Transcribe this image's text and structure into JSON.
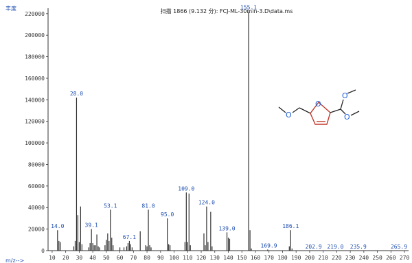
{
  "chart_data": {
    "type": "bar",
    "title": "扫描 1866 (9.132 分): FCJ-ML-30min-3.D\\data.ms",
    "ylabel": "丰度",
    "xlabel": "m/z-->",
    "xlim": [
      7,
      273
    ],
    "ylim": [
      0,
      225000
    ],
    "xticks": [
      10,
      20,
      30,
      40,
      50,
      60,
      70,
      80,
      90,
      100,
      110,
      120,
      130,
      140,
      150,
      160,
      170,
      180,
      190,
      200,
      210,
      220,
      230,
      240,
      250,
      260,
      270
    ],
    "yticks": [
      0,
      20000,
      40000,
      60000,
      80000,
      100000,
      120000,
      140000,
      160000,
      180000,
      200000,
      220000
    ],
    "peaks": [
      {
        "x": 14,
        "y": 19000
      },
      {
        "x": 15,
        "y": 9000
      },
      {
        "x": 16,
        "y": 8000
      },
      {
        "x": 26,
        "y": 4000
      },
      {
        "x": 27,
        "y": 9000
      },
      {
        "x": 28,
        "y": 142000
      },
      {
        "x": 29,
        "y": 33000
      },
      {
        "x": 30,
        "y": 8000
      },
      {
        "x": 31,
        "y": 41000
      },
      {
        "x": 32,
        "y": 6000
      },
      {
        "x": 37,
        "y": 3000
      },
      {
        "x": 38,
        "y": 7000
      },
      {
        "x": 39,
        "y": 20000
      },
      {
        "x": 40,
        "y": 7000
      },
      {
        "x": 41,
        "y": 5000
      },
      {
        "x": 42,
        "y": 5000
      },
      {
        "x": 43,
        "y": 15000
      },
      {
        "x": 44,
        "y": 4000
      },
      {
        "x": 45,
        "y": 3000
      },
      {
        "x": 49,
        "y": 5000
      },
      {
        "x": 50,
        "y": 10000
      },
      {
        "x": 51,
        "y": 16000
      },
      {
        "x": 52,
        "y": 9000
      },
      {
        "x": 53,
        "y": 38000
      },
      {
        "x": 54,
        "y": 12000
      },
      {
        "x": 55,
        "y": 5000
      },
      {
        "x": 60,
        "y": 3000
      },
      {
        "x": 63,
        "y": 3000
      },
      {
        "x": 65,
        "y": 4000
      },
      {
        "x": 66,
        "y": 7000
      },
      {
        "x": 67,
        "y": 9000
      },
      {
        "x": 68,
        "y": 6000
      },
      {
        "x": 69,
        "y": 3000
      },
      {
        "x": 75,
        "y": 18000
      },
      {
        "x": 79,
        "y": 5000
      },
      {
        "x": 80,
        "y": 4000
      },
      {
        "x": 81,
        "y": 38000
      },
      {
        "x": 82,
        "y": 5000
      },
      {
        "x": 83,
        "y": 3000
      },
      {
        "x": 95,
        "y": 30000
      },
      {
        "x": 96,
        "y": 6000
      },
      {
        "x": 97,
        "y": 5000
      },
      {
        "x": 108,
        "y": 8000
      },
      {
        "x": 109,
        "y": 54000
      },
      {
        "x": 110,
        "y": 8000
      },
      {
        "x": 111,
        "y": 53000
      },
      {
        "x": 112,
        "y": 5000
      },
      {
        "x": 122,
        "y": 16000
      },
      {
        "x": 123,
        "y": 5000
      },
      {
        "x": 124,
        "y": 41000
      },
      {
        "x": 125,
        "y": 8000
      },
      {
        "x": 127,
        "y": 36000
      },
      {
        "x": 128,
        "y": 4000
      },
      {
        "x": 139,
        "y": 17000
      },
      {
        "x": 140,
        "y": 12000
      },
      {
        "x": 141,
        "y": 11000
      },
      {
        "x": 155,
        "y": 222000
      },
      {
        "x": 156,
        "y": 19000
      },
      {
        "x": 157,
        "y": 2000
      },
      {
        "x": 169,
        "y": 1000
      },
      {
        "x": 185,
        "y": 4000
      },
      {
        "x": 186,
        "y": 19000
      },
      {
        "x": 187,
        "y": 2000
      }
    ],
    "peak_labels": [
      {
        "x": 14,
        "y": 19000,
        "text": "14.0"
      },
      {
        "x": 28,
        "y": 142000,
        "text": "28.0"
      },
      {
        "x": 39,
        "y": 20000,
        "text": "39.1"
      },
      {
        "x": 53,
        "y": 38000,
        "text": "53.1"
      },
      {
        "x": 67,
        "y": 9000,
        "text": "67.1"
      },
      {
        "x": 81,
        "y": 38000,
        "text": "81.0"
      },
      {
        "x": 95,
        "y": 30000,
        "text": "95.0"
      },
      {
        "x": 109,
        "y": 54000,
        "text": "109.0"
      },
      {
        "x": 124,
        "y": 41000,
        "text": "124.0"
      },
      {
        "x": 139,
        "y": 17000,
        "text": "139.0"
      },
      {
        "x": 155,
        "y": 222000,
        "text": "155.1"
      },
      {
        "x": 169.9,
        "y": 1000,
        "text": "169.9"
      },
      {
        "x": 186,
        "y": 19000,
        "text": "186.1"
      },
      {
        "x": 202.9,
        "y": 0,
        "text": "202.9"
      },
      {
        "x": 219,
        "y": 0,
        "text": "219.0"
      },
      {
        "x": 235.9,
        "y": 0,
        "text": "235.9"
      },
      {
        "x": 265.9,
        "y": 0,
        "text": "265.9"
      }
    ],
    "grid": false,
    "legend": "none"
  },
  "structure": {
    "oxygen_label": "O",
    "colors": {
      "oxygen": "#1f5fd6",
      "ring": "#c0392b",
      "bond": "#222222"
    }
  }
}
